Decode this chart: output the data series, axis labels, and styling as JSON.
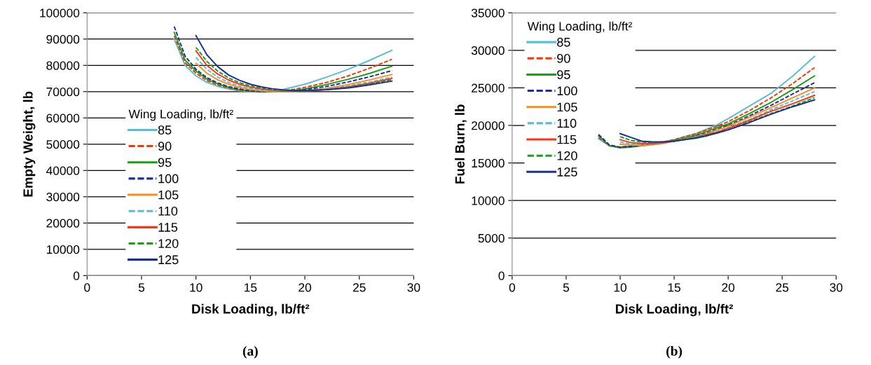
{
  "chart_data": [
    {
      "type": "line",
      "xlabel": "Disk Loading, lb/ft²",
      "ylabel": "Empty Weight, lb",
      "legend_title": "Wing Loading, lb/ft²",
      "annotations": [
        "(a)"
      ],
      "xlim": [
        0,
        30
      ],
      "xticks": [
        0,
        5,
        10,
        15,
        20,
        25,
        30
      ],
      "ylim": [
        0,
        100000
      ],
      "yticks": [
        0,
        10000,
        20000,
        30000,
        40000,
        50000,
        60000,
        70000,
        80000,
        90000,
        100000
      ],
      "grid": "y",
      "legend": "lower left",
      "marker": "none",
      "series": [
        {
          "name": "85",
          "color": "#5bbcd6",
          "line_style": "solid",
          "x": [
            8,
            9,
            10,
            11,
            12,
            13,
            14,
            15,
            16,
            17,
            18,
            19,
            20,
            22,
            24,
            26,
            28
          ],
          "values": [
            90000,
            80000,
            76000,
            73500,
            72000,
            71000,
            70300,
            70000,
            69800,
            70000,
            70800,
            71800,
            72800,
            75500,
            78500,
            82000,
            85700
          ]
        },
        {
          "name": "90",
          "color": "#ff3300",
          "line_style": "dashed",
          "x": [
            8,
            9,
            10,
            11,
            12,
            13,
            14,
            15,
            16,
            17,
            18,
            19,
            20,
            22,
            24,
            26,
            28
          ],
          "values": [
            91200,
            81000,
            77000,
            74200,
            72500,
            71300,
            70500,
            70100,
            69900,
            69900,
            70300,
            70900,
            71600,
            73500,
            76000,
            79000,
            82300
          ]
        },
        {
          "name": "95",
          "color": "#16a016",
          "line_style": "solid",
          "x": [
            8,
            9,
            10,
            11,
            12,
            13,
            14,
            15,
            16,
            17,
            18,
            19,
            20,
            22,
            24,
            26,
            28
          ],
          "values": [
            92500,
            82000,
            77800,
            74800,
            72900,
            71600,
            70700,
            70200,
            70000,
            69900,
            70100,
            70500,
            71000,
            72700,
            74700,
            77000,
            79700
          ]
        },
        {
          "name": "100",
          "color": "#1a2ea0",
          "line_style": "dashed",
          "x": [
            8,
            9,
            10,
            11,
            12,
            13,
            14,
            15,
            16,
            17,
            18,
            19,
            20,
            22,
            24,
            26,
            28
          ],
          "values": [
            94800,
            83500,
            78500,
            75300,
            73300,
            71900,
            71000,
            70400,
            70100,
            70000,
            70000,
            70300,
            70700,
            72000,
            73700,
            75700,
            78000
          ]
        },
        {
          "name": "105",
          "color": "#ff8c1a",
          "line_style": "solid",
          "x": [
            10,
            11,
            12,
            13,
            14,
            15,
            16,
            17,
            18,
            19,
            20,
            22,
            24,
            26,
            28
          ],
          "values": [
            80800,
            77000,
            74500,
            72800,
            71600,
            70800,
            70300,
            70000,
            69900,
            70000,
            70300,
            71300,
            72700,
            74500,
            76500
          ]
        },
        {
          "name": "110",
          "color": "#5bbcd6",
          "line_style": "dashed",
          "x": [
            10,
            11,
            12,
            13,
            14,
            15,
            16,
            17,
            18,
            19,
            20,
            22,
            24,
            26,
            28
          ],
          "values": [
            83000,
            78500,
            75500,
            73500,
            72100,
            71200,
            70600,
            70200,
            70000,
            70000,
            70200,
            71000,
            72200,
            73700,
            75500
          ]
        },
        {
          "name": "115",
          "color": "#ff3311",
          "line_style": "solid",
          "x": [
            10,
            11,
            12,
            13,
            14,
            15,
            16,
            17,
            18,
            19,
            20,
            22,
            24,
            26,
            28
          ],
          "values": [
            85500,
            80000,
            76700,
            74400,
            72800,
            71700,
            71000,
            70500,
            70200,
            70100,
            70200,
            70800,
            71800,
            73200,
            75000
          ]
        },
        {
          "name": "120",
          "color": "#16a016",
          "line_style": "dashed",
          "x": [
            10,
            11,
            12,
            13,
            14,
            15,
            16,
            17,
            18,
            19,
            20,
            22,
            24,
            26,
            28
          ],
          "values": [
            86800,
            81500,
            77800,
            75200,
            73400,
            72200,
            71400,
            70800,
            70400,
            70200,
            70300,
            70800,
            71600,
            72900,
            74500
          ]
        },
        {
          "name": "125",
          "color": "#1a2ea0",
          "line_style": "solid",
          "x": [
            10,
            11,
            12,
            13,
            14,
            15,
            16,
            17,
            18,
            19,
            20,
            22,
            24,
            26,
            28
          ],
          "values": [
            91300,
            84000,
            79500,
            76300,
            74300,
            72800,
            71800,
            71100,
            70700,
            70400,
            70400,
            70700,
            71400,
            72600,
            74000
          ]
        }
      ]
    },
    {
      "type": "line",
      "xlabel": "Disk Loading, lb/ft²",
      "ylabel": "Fuel Burn, lb",
      "legend_title": "Wing Loading, lb/ft²",
      "annotations": [
        "(b)"
      ],
      "xlim": [
        0,
        30
      ],
      "xticks": [
        0,
        5,
        10,
        15,
        20,
        25,
        30
      ],
      "ylim": [
        0,
        35000
      ],
      "yticks": [
        0,
        5000,
        10000,
        15000,
        20000,
        25000,
        30000,
        35000
      ],
      "grid": "y",
      "legend": "upper left",
      "marker": "none",
      "series": [
        {
          "name": "85",
          "color": "#5bbcd6",
          "line_style": "solid",
          "x": [
            8,
            9,
            10,
            11,
            12,
            13,
            14,
            15,
            16,
            17,
            18,
            19,
            20,
            22,
            24,
            26,
            28
          ],
          "values": [
            18200,
            17300,
            17100,
            17300,
            17500,
            17600,
            17800,
            18100,
            18500,
            18900,
            19500,
            20100,
            20900,
            22600,
            24300,
            26600,
            29200
          ]
        },
        {
          "name": "90",
          "color": "#ff3300",
          "line_style": "dashed",
          "x": [
            8,
            9,
            10,
            11,
            12,
            13,
            14,
            15,
            16,
            17,
            18,
            19,
            20,
            22,
            24,
            26,
            28
          ],
          "values": [
            18400,
            17300,
            17100,
            17200,
            17400,
            17600,
            17800,
            18100,
            18500,
            18900,
            19400,
            19900,
            20500,
            22000,
            23700,
            25600,
            27700
          ]
        },
        {
          "name": "95",
          "color": "#16a016",
          "line_style": "solid",
          "x": [
            8,
            9,
            10,
            11,
            12,
            13,
            14,
            15,
            16,
            17,
            18,
            19,
            20,
            22,
            24,
            26,
            28
          ],
          "values": [
            18600,
            17300,
            17000,
            17100,
            17300,
            17500,
            17700,
            18000,
            18300,
            18700,
            19200,
            19700,
            20200,
            21600,
            23100,
            24800,
            26600
          ]
        },
        {
          "name": "100",
          "color": "#1a2ea0",
          "line_style": "dashed",
          "x": [
            8,
            9,
            10,
            11,
            12,
            13,
            14,
            15,
            16,
            17,
            18,
            19,
            20,
            22,
            24,
            26,
            28
          ],
          "values": [
            18800,
            17400,
            17100,
            17200,
            17300,
            17500,
            17700,
            17900,
            18200,
            18600,
            19000,
            19500,
            20000,
            21300,
            22700,
            24200,
            25700
          ]
        },
        {
          "name": "105",
          "color": "#ff8c1a",
          "line_style": "solid",
          "x": [
            10,
            11,
            12,
            13,
            14,
            15,
            16,
            17,
            18,
            19,
            20,
            22,
            24,
            26,
            28
          ],
          "values": [
            17500,
            17400,
            17300,
            17400,
            17600,
            17900,
            18200,
            18500,
            18900,
            19400,
            19900,
            21100,
            22400,
            23700,
            25000
          ]
        },
        {
          "name": "110",
          "color": "#5bbcd6",
          "line_style": "dashed",
          "x": [
            10,
            11,
            12,
            13,
            14,
            15,
            16,
            17,
            18,
            19,
            20,
            22,
            24,
            26,
            28
          ],
          "values": [
            17800,
            17500,
            17500,
            17500,
            17700,
            17900,
            18200,
            18500,
            18800,
            19200,
            19700,
            20800,
            22100,
            23300,
            24500
          ]
        },
        {
          "name": "115",
          "color": "#ff3311",
          "line_style": "solid",
          "x": [
            10,
            11,
            12,
            13,
            14,
            15,
            16,
            17,
            18,
            19,
            20,
            22,
            24,
            26,
            28
          ],
          "values": [
            18100,
            17700,
            17600,
            17600,
            17700,
            17900,
            18100,
            18400,
            18800,
            19100,
            19600,
            20700,
            21900,
            22900,
            24000
          ]
        },
        {
          "name": "120",
          "color": "#16a016",
          "line_style": "dashed",
          "x": [
            10,
            11,
            12,
            13,
            14,
            15,
            16,
            17,
            18,
            19,
            20,
            22,
            24,
            26,
            28
          ],
          "values": [
            18500,
            18000,
            17800,
            17700,
            17800,
            18000,
            18200,
            18400,
            18700,
            19000,
            19400,
            20500,
            21600,
            22600,
            23700
          ]
        },
        {
          "name": "125",
          "color": "#1a2ea0",
          "line_style": "solid",
          "x": [
            10,
            11,
            12,
            13,
            14,
            15,
            16,
            17,
            18,
            19,
            20,
            22,
            24,
            26,
            28
          ],
          "values": [
            18900,
            18400,
            17900,
            17800,
            17800,
            17900,
            18100,
            18300,
            18600,
            19000,
            19400,
            20400,
            21500,
            22500,
            23400
          ]
        }
      ]
    }
  ]
}
